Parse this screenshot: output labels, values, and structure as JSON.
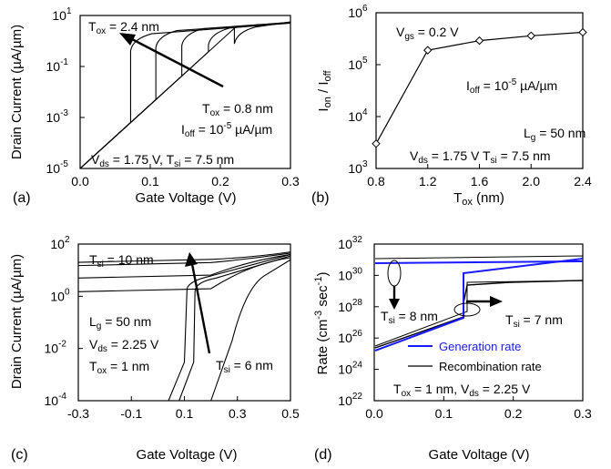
{
  "figure": {
    "panel_labels": [
      "(a)",
      "(b)",
      "(c)",
      "(d)"
    ]
  },
  "chart_data": [
    {
      "id": "a",
      "type": "line",
      "xlabel": "Gate Voltage (V)",
      "ylabel": "Drain Current (µA/µm)",
      "xlim": [
        0.0,
        0.3
      ],
      "ylim": [
        1e-05,
        10
      ],
      "yscale": "log",
      "xticks": [
        "0.0",
        "0.1",
        "0.2",
        "0.3"
      ],
      "yticks": [
        "10",
        "10",
        "10",
        "10"
      ],
      "ytick_exp": [
        "1",
        "-1",
        "-3",
        "-5"
      ],
      "annotations": {
        "tox_top": "T",
        "tox_top_sub": "ox",
        "tox_top_rest": " = 2.4 nm",
        "tox_bot": "T",
        "tox_bot_sub": "ox",
        "tox_bot_rest": " = 0.8 nm",
        "ioff": "I",
        "ioff_sub": "off",
        "ioff_rest": " = 10",
        "ioff_exp": "-5",
        "ioff_unit": " µA/µm",
        "vds": "V",
        "vds_sub": "ds",
        "vds_rest": " = 1.75 V, T",
        "tsi_sub": "si",
        "tsi_rest": " = 7.5 nm"
      },
      "series": [
        {
          "onset_v": 0.072,
          "sat": [
            1.2,
            5.0
          ]
        },
        {
          "onset_v": 0.108,
          "sat": [
            1.6,
            5.2
          ]
        },
        {
          "onset_v": 0.145,
          "sat": [
            1.9,
            5.4
          ]
        },
        {
          "onset_v": 0.183,
          "sat": [
            2.0,
            5.5
          ]
        },
        {
          "onset_v": 0.22,
          "sat": [
            2.2,
            5.6
          ]
        }
      ]
    },
    {
      "id": "b",
      "type": "line",
      "xlabel": "T",
      "xlabel_sub": "ox",
      "xlabel_rest": " (nm)",
      "ylabel": "I",
      "ylabel_sub1": "on",
      "ylabel_mid": " / I",
      "ylabel_sub2": "off",
      "xlim": [
        0.8,
        2.4
      ],
      "ylim": [
        1000,
        1000000
      ],
      "yscale": "log",
      "xticks": [
        "0.8",
        "1.2",
        "1.6",
        "2.0",
        "2.4"
      ],
      "yticks": [
        "10",
        "10",
        "10",
        "10"
      ],
      "ytick_exp": [
        "6",
        "5",
        "4",
        "3"
      ],
      "x": [
        0.8,
        1.2,
        1.6,
        2.0,
        2.4
      ],
      "values": [
        3000,
        190000,
        290000,
        360000,
        420000
      ],
      "annotations": {
        "vgs": "V",
        "vgs_sub": "gs",
        "vgs_rest": " = 0.2 V",
        "ioff": "I",
        "ioff_sub": "off",
        "ioff_rest": " = 10",
        "ioff_exp": "-5",
        "ioff_unit": " µA/µm",
        "lg": "L",
        "lg_sub": "g",
        "lg_rest": " = 50 nm",
        "vds": "V",
        "vds_sub": "ds",
        "vds_rest": " = 1.75 V  T",
        "tsi_sub": "si",
        "tsi_rest": " = 7.5 nm"
      }
    },
    {
      "id": "c",
      "type": "line",
      "xlabel": "Gate Voltage (V)",
      "ylabel": "Drain Current (µA/µm)",
      "xlim": [
        -0.3,
        0.5
      ],
      "ylim": [
        0.0001,
        100
      ],
      "yscale": "log",
      "xticks": [
        "-0.3",
        "-0.1",
        "0.1",
        "0.3",
        "0.5"
      ],
      "yticks": [
        "10",
        "10",
        "10",
        "10"
      ],
      "ytick_exp": [
        "2",
        "0",
        "-2",
        "-4"
      ],
      "annotations": {
        "tsi_top": "T",
        "tsi_top_sub": "si",
        "tsi_top_rest": " = 10 nm",
        "tsi_bot": "T",
        "tsi_bot_sub": "si",
        "tsi_bot_rest": " = 6 nm",
        "lg": "L",
        "lg_sub": "g",
        "lg_rest": " = 50 nm",
        "vds": "V",
        "vds_sub": "ds",
        "vds_rest": " = 2.25 V",
        "tox": "T",
        "tox_sub": "ox",
        "tox_rest": " = 1 nm"
      }
    },
    {
      "id": "d",
      "type": "line",
      "xlabel": "Gate Voltage (V)",
      "ylabel": "Rate (cm",
      "ylabel_exp1": "-3",
      "ylabel_mid": " sec",
      "ylabel_exp2": "-1",
      "ylabel_end": ")",
      "xlim": [
        0.0,
        0.3
      ],
      "ylim": [
        1e+22,
        1e+32
      ],
      "yscale": "log",
      "xticks": [
        "0.0",
        "0.1",
        "0.2",
        "0.3"
      ],
      "yticks": [
        "10",
        "10",
        "10",
        "10",
        "10",
        "10"
      ],
      "ytick_exp": [
        "32",
        "30",
        "28",
        "26",
        "24",
        "22"
      ],
      "legend": [
        "Generation rate",
        "Recombination rate"
      ],
      "legend_colors": [
        "#1a1aff",
        "#000000"
      ],
      "annotations": {
        "tsi8": "T",
        "tsi8_sub": "si",
        "tsi8_rest": " = 8 nm",
        "tsi7": "T",
        "tsi7_sub": "si",
        "tsi7_rest": " = 7 nm",
        "tox": "T",
        "tox_sub": "ox",
        "tox_rest": " = 1 nm, V",
        "vds_sub": "ds",
        "vds_rest": " = 2.25 V"
      }
    }
  ]
}
